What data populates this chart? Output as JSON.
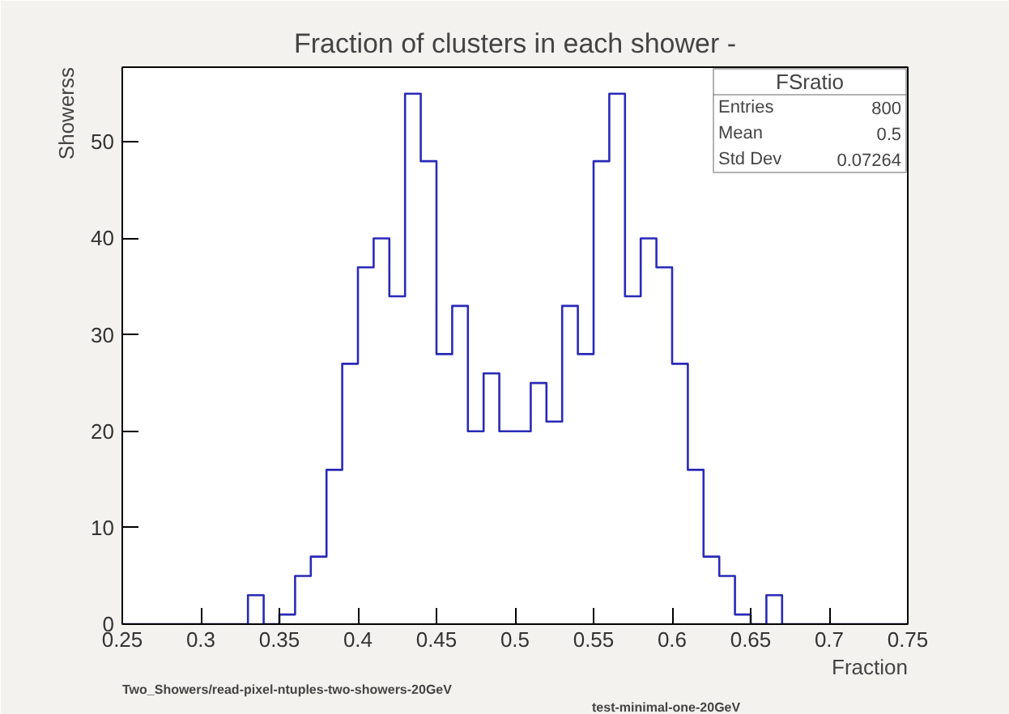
{
  "chart_data": {
    "type": "histogram",
    "title": "Fraction of clusters in each shower -",
    "xlabel": "Fraction",
    "ylabel": "Showerss",
    "bins": [
      0.25,
      0.26,
      0.27,
      0.28,
      0.29,
      0.3,
      0.31,
      0.32,
      0.33,
      0.34,
      0.35,
      0.36,
      0.37,
      0.38,
      0.39,
      0.4,
      0.41,
      0.42,
      0.43,
      0.44,
      0.45,
      0.46,
      0.47,
      0.48,
      0.49,
      0.5,
      0.51,
      0.52,
      0.53,
      0.54,
      0.55,
      0.56,
      0.57,
      0.58,
      0.59,
      0.6,
      0.61,
      0.62,
      0.63,
      0.64,
      0.65,
      0.66,
      0.67,
      0.68,
      0.69,
      0.7,
      0.71,
      0.72,
      0.73,
      0.74,
      0.75
    ],
    "values": [
      0,
      0,
      0,
      0,
      0,
      0,
      0,
      0,
      3,
      0,
      1,
      5,
      7,
      16,
      27,
      37,
      40,
      34,
      55,
      48,
      28,
      33,
      20,
      26,
      20,
      20,
      25,
      21,
      33,
      28,
      48,
      55,
      34,
      40,
      37,
      27,
      16,
      7,
      5,
      1,
      0,
      3,
      0,
      0,
      0,
      0,
      0,
      0,
      0,
      0
    ],
    "color": "#2a2ab8",
    "xlim": [
      0.25,
      0.75
    ],
    "ylim": [
      0,
      57.75
    ],
    "xticks": [
      0.25,
      0.3,
      0.35,
      0.4,
      0.45,
      0.5,
      0.55,
      0.6,
      0.65,
      0.7,
      0.75
    ],
    "yticks": [
      0,
      10,
      20,
      30,
      40,
      50
    ],
    "grid": false,
    "annotations": [
      "FSratio",
      "Entries",
      "800",
      "Mean",
      "0.5",
      "Std Dev",
      "0.07264",
      "Two_Showers/read-pixel-ntuples-two-showers-20GeV",
      "test-minimal-one-20GeV"
    ]
  }
}
